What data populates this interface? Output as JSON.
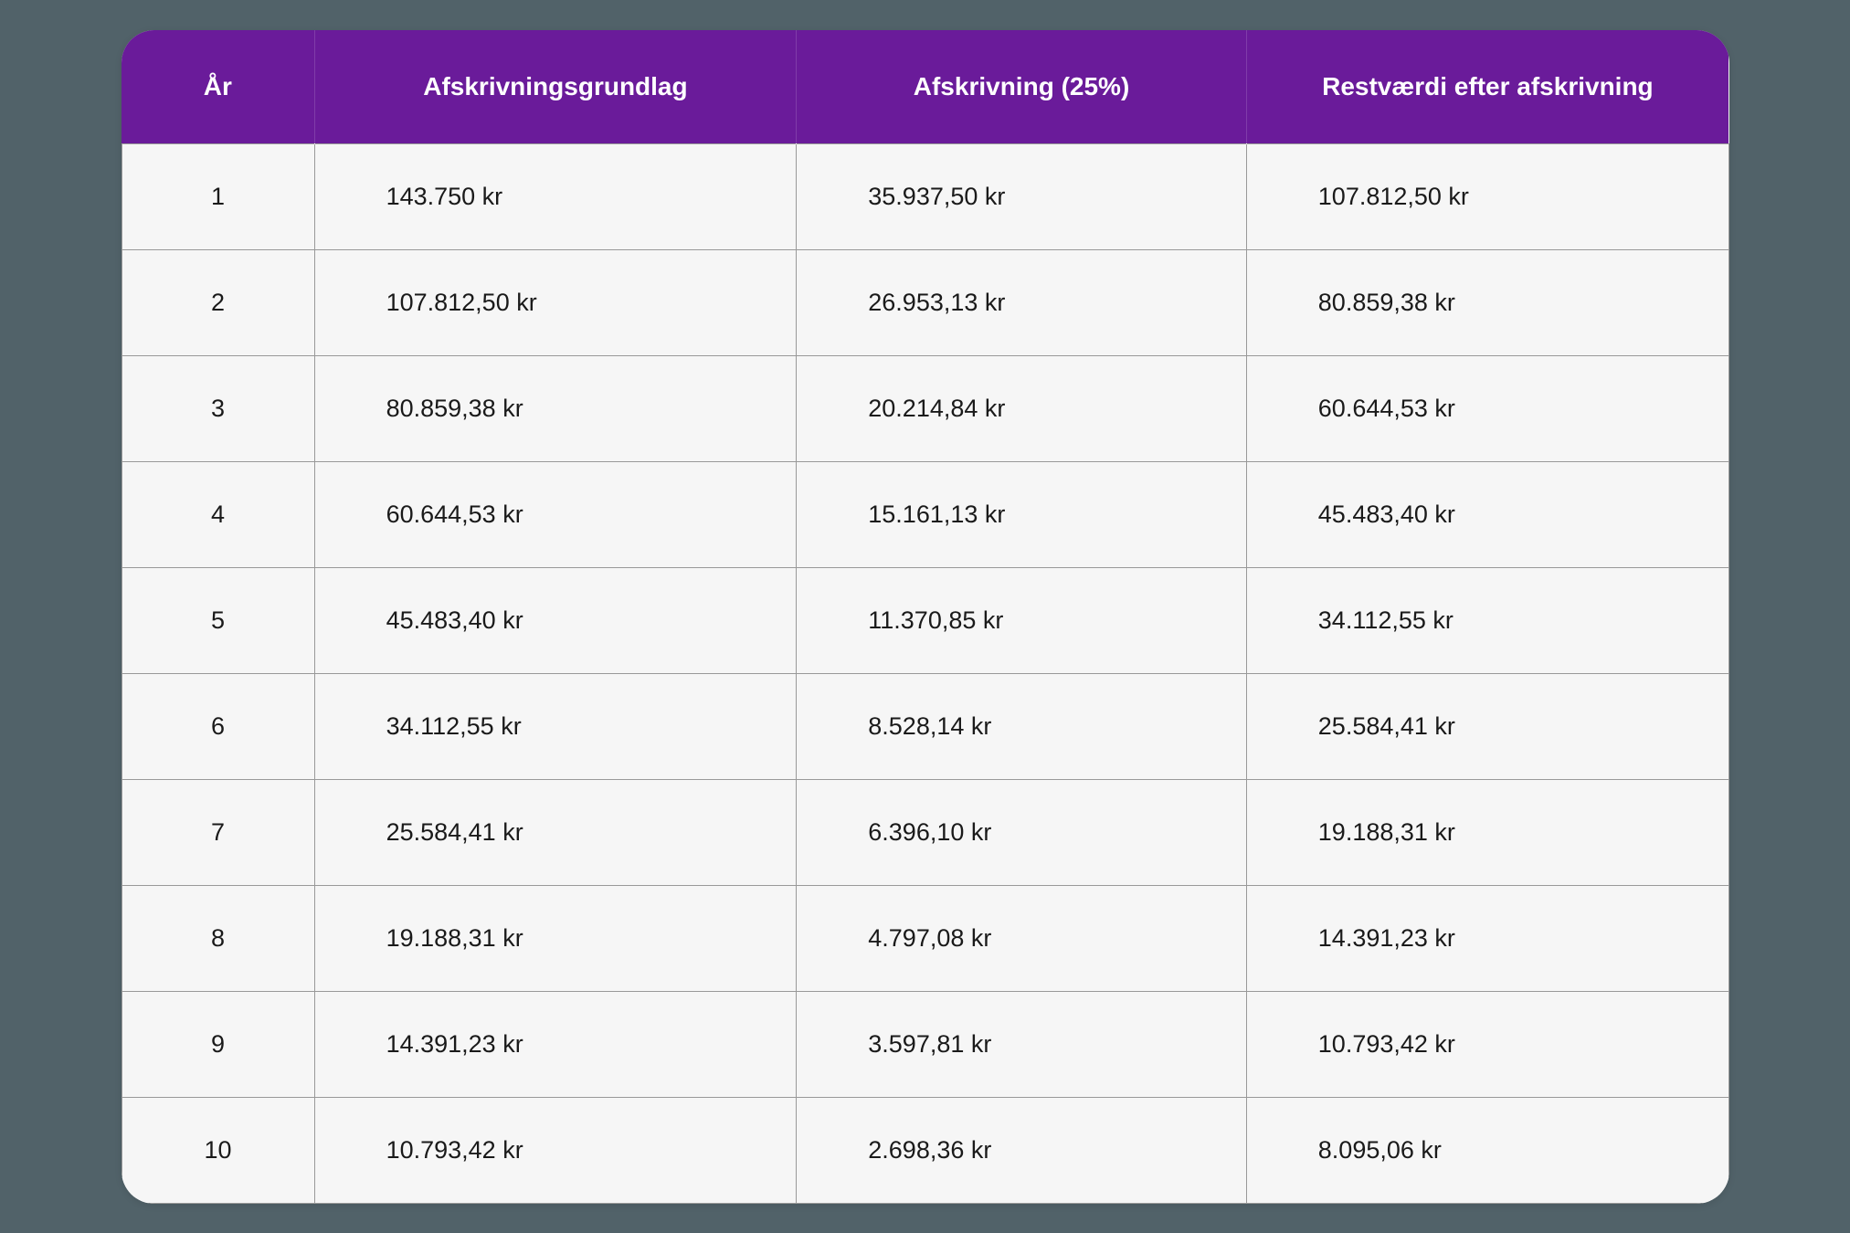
{
  "table": {
    "columns": [
      {
        "key": "year",
        "label": "År",
        "class": "col-year",
        "cellClass": "year-cell"
      },
      {
        "key": "basis",
        "label": "Afskrivningsgrundlag",
        "class": "col-basis",
        "cellClass": ""
      },
      {
        "key": "depreciation",
        "label": "Afskrivning (25%)",
        "class": "col-depreciation",
        "cellClass": ""
      },
      {
        "key": "residual",
        "label": "Restværdi efter afskrivning",
        "class": "col-residual",
        "cellClass": ""
      }
    ],
    "rows": [
      {
        "year": "1",
        "basis": "143.750 kr",
        "depreciation": "35.937,50 kr",
        "residual": "107.812,50 kr"
      },
      {
        "year": "2",
        "basis": "107.812,50 kr",
        "depreciation": "26.953,13 kr",
        "residual": "80.859,38 kr"
      },
      {
        "year": "3",
        "basis": "80.859,38 kr",
        "depreciation": "20.214,84 kr",
        "residual": "60.644,53 kr"
      },
      {
        "year": "4",
        "basis": "60.644,53 kr",
        "depreciation": "15.161,13 kr",
        "residual": "45.483,40 kr"
      },
      {
        "year": "5",
        "basis": "45.483,40 kr",
        "depreciation": "11.370,85 kr",
        "residual": "34.112,55 kr"
      },
      {
        "year": "6",
        "basis": "34.112,55 kr",
        "depreciation": "8.528,14 kr",
        "residual": "25.584,41 kr"
      },
      {
        "year": "7",
        "basis": "25.584,41 kr",
        "depreciation": "6.396,10 kr",
        "residual": "19.188,31 kr"
      },
      {
        "year": "8",
        "basis": "19.188,31 kr",
        "depreciation": "4.797,08 kr",
        "residual": "14.391,23 kr"
      },
      {
        "year": "9",
        "basis": "14.391,23 kr",
        "depreciation": "3.597,81 kr",
        "residual": "10.793,42 kr"
      },
      {
        "year": "10",
        "basis": "10.793,42 kr",
        "depreciation": "2.698,36 kr",
        "residual": "8.095,06 kr"
      }
    ],
    "styling": {
      "header_background": "#6a1b9a",
      "header_text_color": "#ffffff",
      "header_font_size": 28,
      "header_font_weight": 700,
      "body_background": "#f6f6f6",
      "body_text_color": "#1a1a1a",
      "body_font_size": 27,
      "border_color": "#999999",
      "border_radius": 36,
      "page_background": "#516269",
      "cell_padding_vertical": 42,
      "cell_padding_left": 78
    }
  }
}
